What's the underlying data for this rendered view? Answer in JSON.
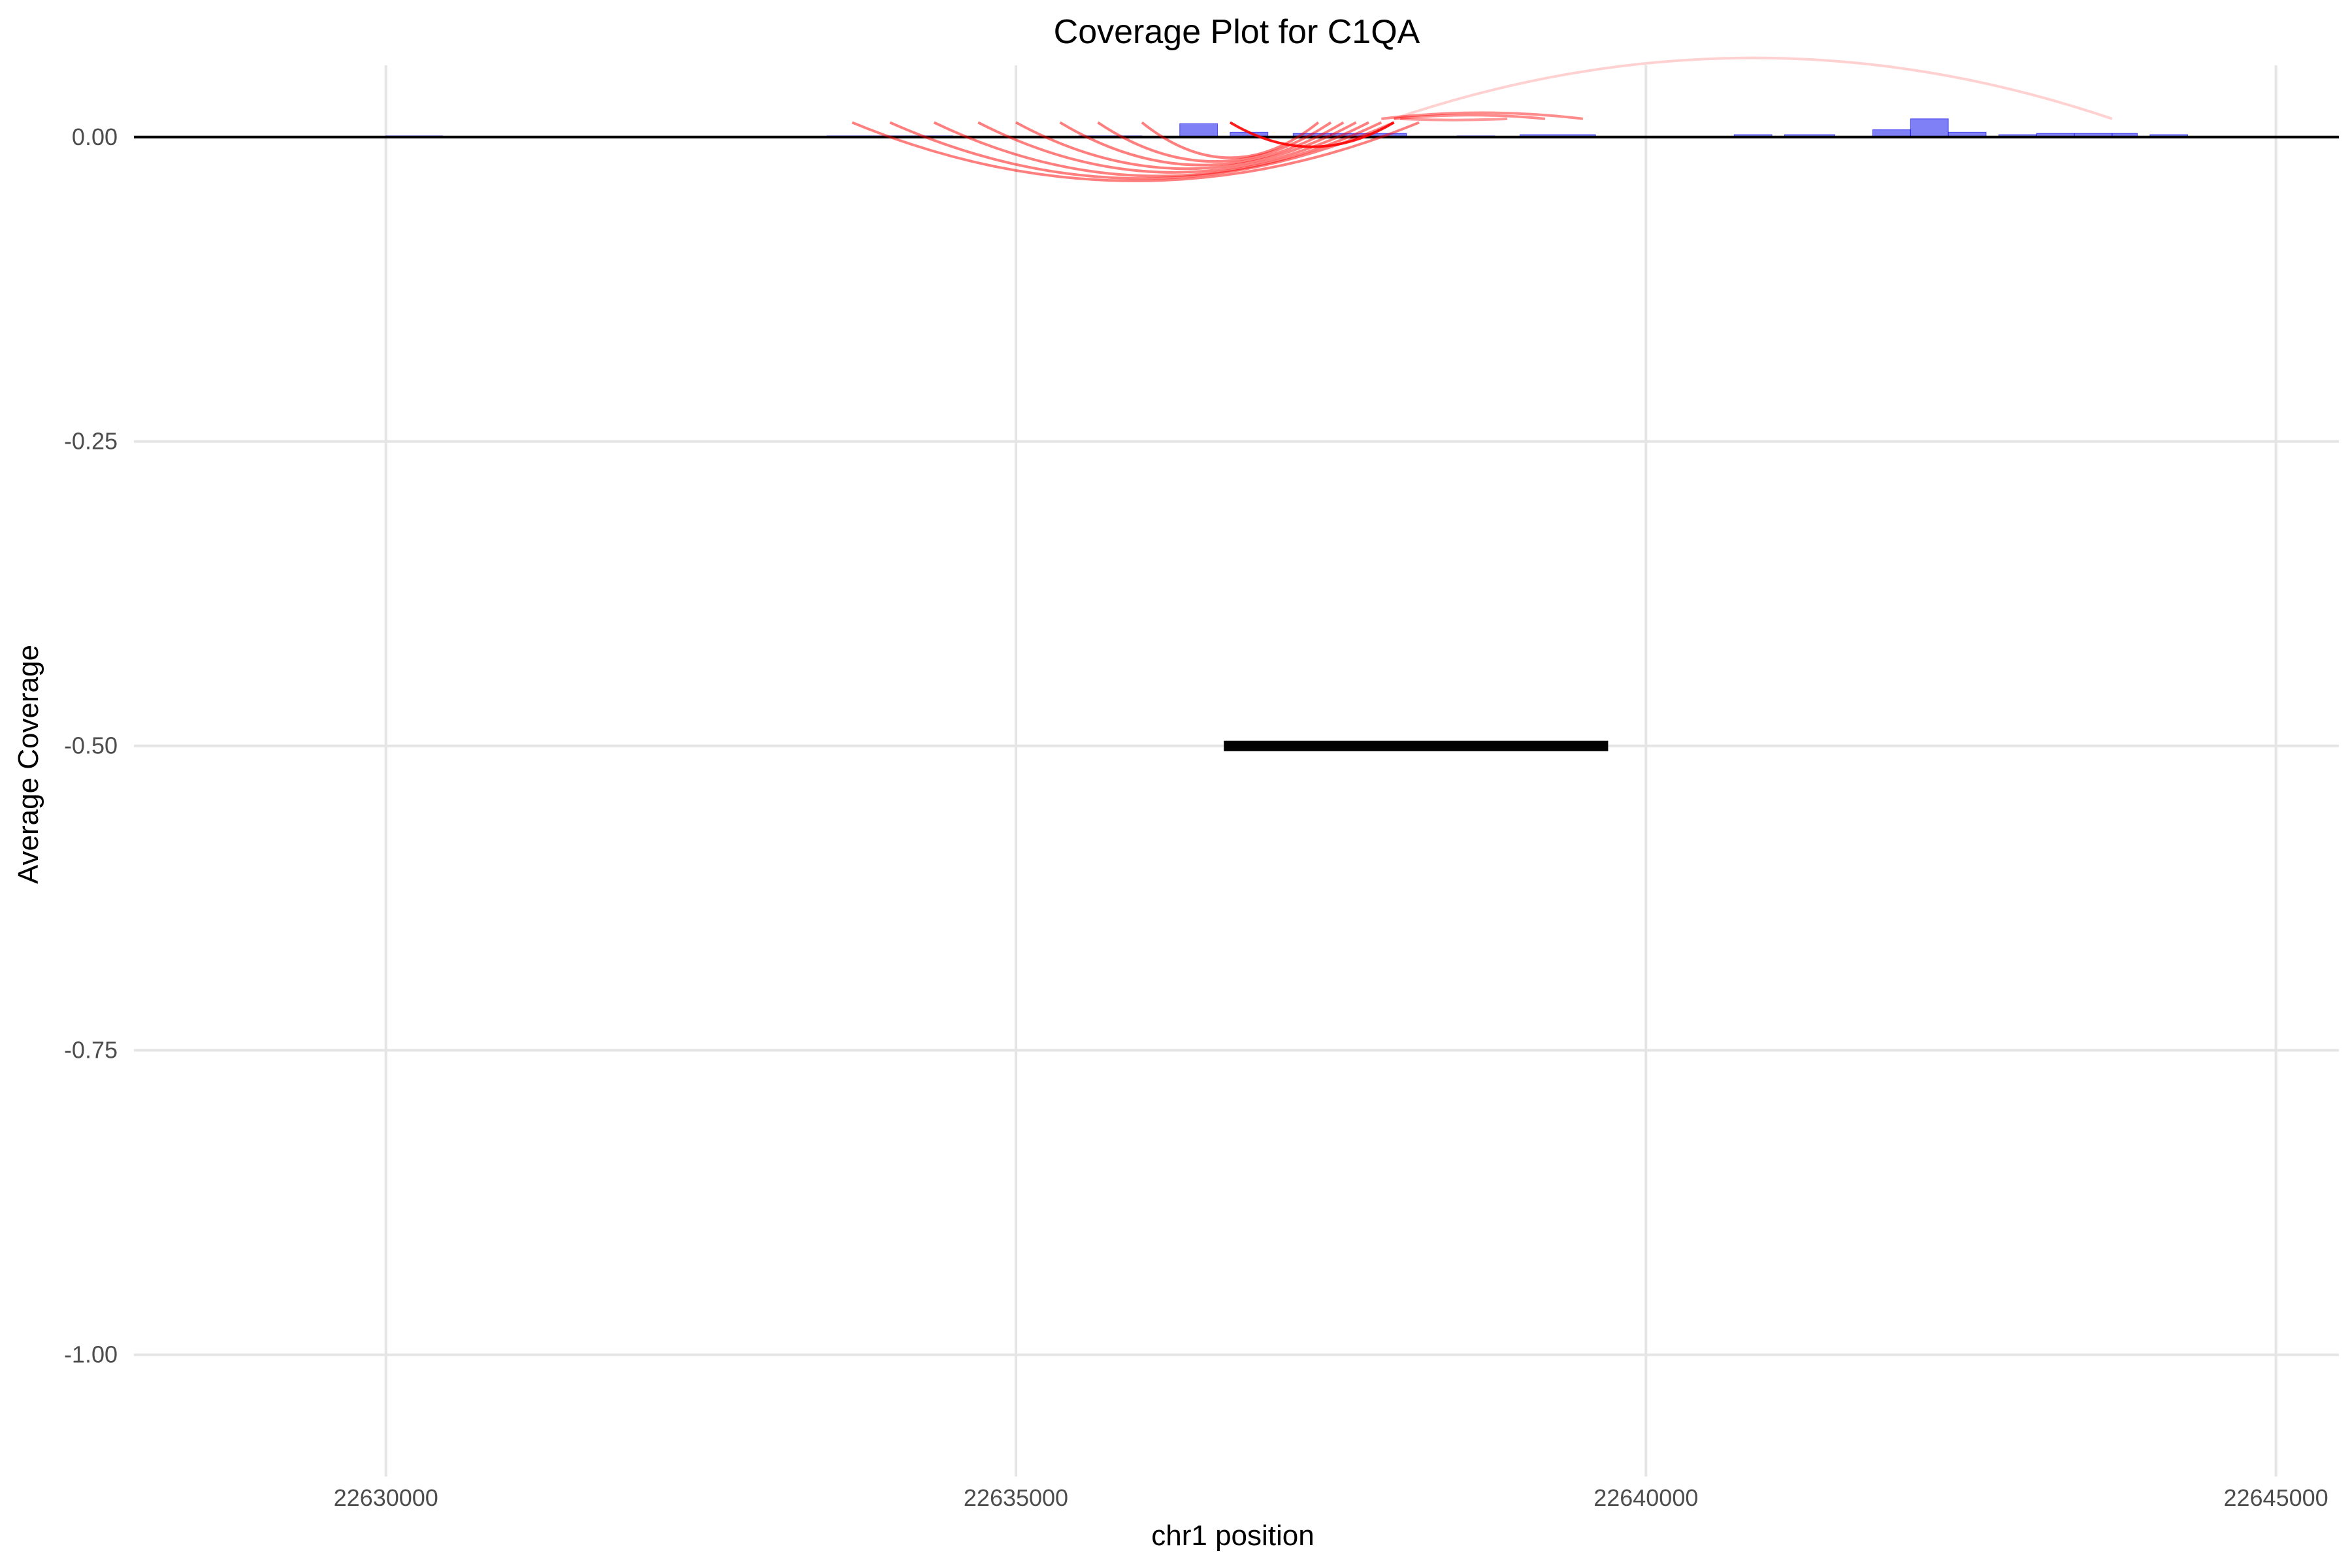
{
  "chart_data": {
    "type": "area",
    "title": "Coverage Plot for C1QA",
    "xlabel": "chr1 position",
    "ylabel": "Average Coverage",
    "xlim": [
      22628000,
      22645500
    ],
    "ylim": [
      -1.1,
      0.075
    ],
    "x_ticks": [
      22630000,
      22635000,
      22640000,
      22645000
    ],
    "x_tick_labels": [
      "22630000",
      "22635000",
      "22640000",
      "22645000"
    ],
    "y_ticks": [
      0.0,
      -0.25,
      -0.5,
      -0.75,
      -1.0
    ],
    "y_tick_labels": [
      "0.00",
      "-0.25",
      "-0.50",
      "-0.75",
      "-1.00"
    ],
    "grid": true,
    "legend": "none",
    "colors": {
      "coverage": "#0000ee",
      "junction": "#ff0000",
      "gene": "#000000",
      "baseline": "#000000",
      "grid": "#e5e5e5"
    },
    "coverage_bars": [
      {
        "start": 22630000,
        "end": 22630450,
        "value": 0.001
      },
      {
        "start": 22633500,
        "end": 22634000,
        "value": 0.001
      },
      {
        "start": 22634000,
        "end": 22634500,
        "value": 0.001
      },
      {
        "start": 22635500,
        "end": 22636000,
        "value": 0.001
      },
      {
        "start": 22636300,
        "end": 22636600,
        "value": 0.011
      },
      {
        "start": 22636700,
        "end": 22637000,
        "value": 0.004
      },
      {
        "start": 22637200,
        "end": 22637500,
        "value": 0.003
      },
      {
        "start": 22637500,
        "end": 22638100,
        "value": 0.003
      },
      {
        "start": 22638500,
        "end": 22638800,
        "value": 0.001
      },
      {
        "start": 22639000,
        "end": 22639600,
        "value": 0.002
      },
      {
        "start": 22640700,
        "end": 22641000,
        "value": 0.002
      },
      {
        "start": 22641100,
        "end": 22641500,
        "value": 0.002
      },
      {
        "start": 22641800,
        "end": 22642100,
        "value": 0.006
      },
      {
        "start": 22642100,
        "end": 22642400,
        "value": 0.015
      },
      {
        "start": 22642400,
        "end": 22642700,
        "value": 0.004
      },
      {
        "start": 22642800,
        "end": 22643100,
        "value": 0.002
      },
      {
        "start": 22643100,
        "end": 22643400,
        "value": 0.003
      },
      {
        "start": 22643400,
        "end": 22643700,
        "value": 0.003
      },
      {
        "start": 22643700,
        "end": 22643900,
        "value": 0.003
      },
      {
        "start": 22644000,
        "end": 22644300,
        "value": 0.002
      }
    ],
    "junctions": [
      {
        "start": 22633700,
        "end": 22638200,
        "depth": -0.036,
        "opacity": 0.5
      },
      {
        "start": 22634000,
        "end": 22638000,
        "depth": -0.034,
        "opacity": 0.5
      },
      {
        "start": 22634350,
        "end": 22637900,
        "depth": -0.032,
        "opacity": 0.5
      },
      {
        "start": 22634700,
        "end": 22637800,
        "depth": -0.029,
        "opacity": 0.5
      },
      {
        "start": 22635000,
        "end": 22637700,
        "depth": -0.026,
        "opacity": 0.5
      },
      {
        "start": 22635350,
        "end": 22637600,
        "depth": -0.023,
        "opacity": 0.5
      },
      {
        "start": 22635650,
        "end": 22637500,
        "depth": -0.02,
        "opacity": 0.5
      },
      {
        "start": 22636000,
        "end": 22637400,
        "depth": -0.017,
        "opacity": 0.5
      },
      {
        "start": 22636700,
        "end": 22638000,
        "depth": -0.008,
        "opacity": 0.9
      },
      {
        "start": 22637900,
        "end": 22639500,
        "depth": 0.02,
        "opacity": 0.45
      },
      {
        "start": 22638000,
        "end": 22639200,
        "depth": 0.018,
        "opacity": 0.45
      },
      {
        "start": 22638050,
        "end": 22638900,
        "depth": 0.014,
        "opacity": 0.4
      },
      {
        "start": 22638000,
        "end": 22643700,
        "depth": 0.065,
        "opacity": 0.18
      }
    ],
    "gene_segment": {
      "start": 22636650,
      "end": 22639700,
      "y": -0.5
    }
  }
}
